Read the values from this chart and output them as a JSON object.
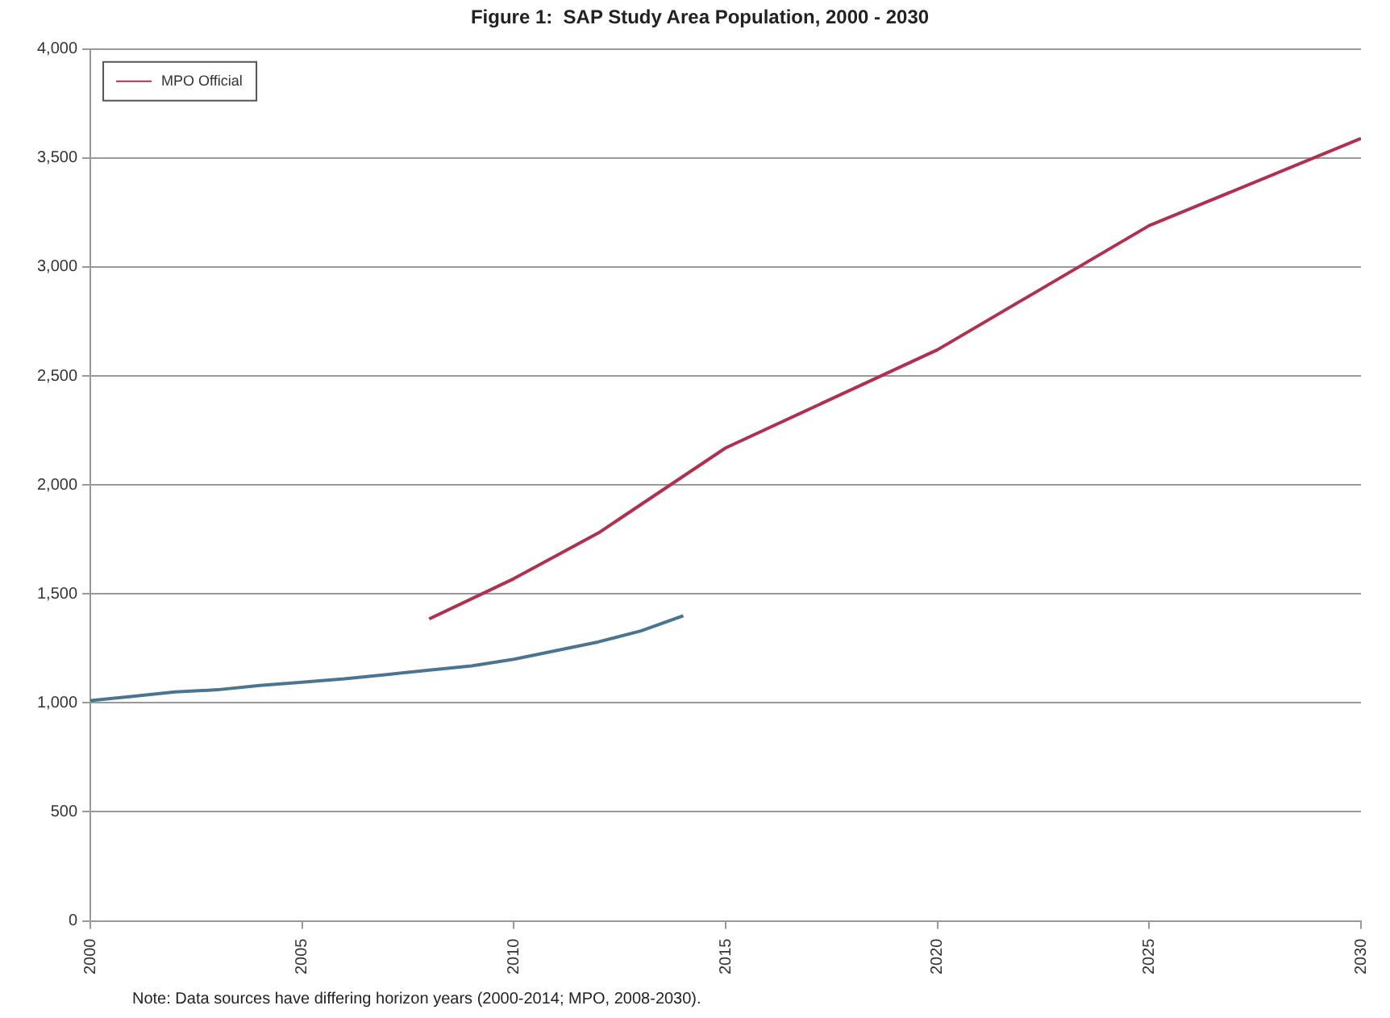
{
  "chart_data": {
    "type": "line",
    "title": "Figure 1:  SAP Study Area Population, 2000 - 2030",
    "series": [
      {
        "color": "#4a7590",
        "x": [
          2000,
          2001,
          2002,
          2003,
          2004,
          2005,
          2006,
          2007,
          2008,
          2009,
          2010,
          2011,
          2012,
          2013,
          2014
        ],
        "values": [
          1010,
          1030,
          1050,
          1060,
          1080,
          1095,
          1110,
          1130,
          1150,
          1170,
          1200,
          1240,
          1280,
          1330,
          1400
        ]
      },
      {
        "name": "MPO Official",
        "color": "#b03050",
        "x": [
          2008,
          2010,
          2012,
          2015,
          2020,
          2025,
          2030
        ],
        "values": [
          1385,
          1570,
          1780,
          2170,
          2620,
          3190,
          3590
        ]
      }
    ],
    "xlim": [
      2000,
      2030
    ],
    "xticks": [
      2000,
      2005,
      2010,
      2015,
      2020,
      2025,
      2030
    ],
    "ylim": [
      0,
      4000
    ],
    "yticks": [
      {
        "value": 0,
        "label": "0"
      },
      {
        "value": 500,
        "label": "500"
      },
      {
        "value": 1000,
        "label": "1,000"
      },
      {
        "value": 1500,
        "label": "1,500"
      },
      {
        "value": 2000,
        "label": "2,000"
      },
      {
        "value": 2500,
        "label": "2,500"
      },
      {
        "value": 3000,
        "label": "3,000"
      },
      {
        "value": 3500,
        "label": "3,500"
      },
      {
        "value": 4000,
        "label": "4,000"
      }
    ],
    "grid": "y",
    "legend": "top left",
    "marker": "none",
    "line_style": "solid",
    "annotations": [
      "Note: Data sources have differing horizon years (2000-2014; MPO, 2008-2030)."
    ]
  }
}
